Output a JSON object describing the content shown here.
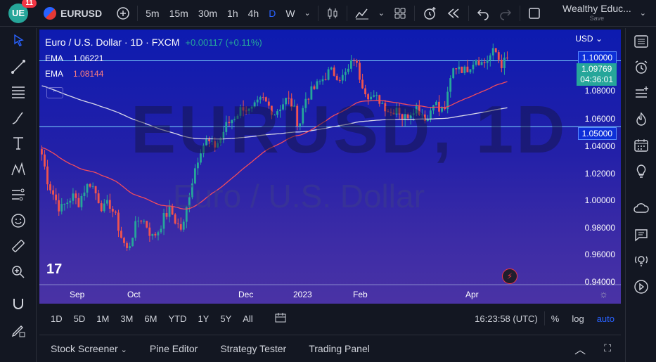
{
  "topbar": {
    "notification_count": "11",
    "symbol": "EURUSD",
    "timeframes": [
      "5m",
      "15m",
      "30m",
      "1h",
      "4h",
      "D",
      "W"
    ],
    "active_timeframe": "D",
    "layout_name": "Wealthy Educ...",
    "layout_status": "Save"
  },
  "legend": {
    "title": "Euro / U.S. Dollar · 1D · FXCM",
    "change": "+0.00117 (+0.11%)",
    "ema1_label": "EMA",
    "ema1_value": "1.06221",
    "ema2_label": "EMA",
    "ema2_value": "1.08144"
  },
  "watermark": {
    "symbol": "EURUSD, 1D",
    "name": "Euro / U.S. Dollar"
  },
  "price_axis": {
    "currency": "USD",
    "ticks": [
      "1.08000",
      "1.06000",
      "1.04000",
      "1.02000",
      "1.00000",
      "0.98000",
      "0.96000",
      "0.94000"
    ],
    "level_high": "1.10000",
    "current_price": "1.09769",
    "countdown": "04:36:01",
    "level_low": "1.05000"
  },
  "time_axis": {
    "labels": [
      "Sep",
      "Oct",
      "Dec",
      "2023",
      "Feb",
      "Apr"
    ]
  },
  "rangebar": {
    "ranges": [
      "1D",
      "5D",
      "1M",
      "3M",
      "6M",
      "YTD",
      "1Y",
      "5Y",
      "All"
    ],
    "clock": "16:23:58 (UTC)",
    "percent": "%",
    "log": "log",
    "auto": "auto"
  },
  "bottom_tabs": [
    "Stock Screener",
    "Pine Editor",
    "Strategy Tester",
    "Trading Panel"
  ],
  "colors": {
    "up": "#26a69a",
    "down": "#ef5350",
    "ema_fast": "#f44c5c",
    "ema_slow": "#d8d8e8",
    "accent": "#2962ff"
  },
  "chart_data": {
    "type": "candlestick",
    "ylim": [
      0.94,
      1.115
    ],
    "series": [
      {
        "name": "EMA",
        "value": "1.06221"
      },
      {
        "name": "EMA",
        "value": "1.08144"
      }
    ],
    "close_path": [
      1.03,
      1.01,
      1.0,
      0.99,
      0.995,
      1.0,
      0.995,
      1.005,
      1.01,
      1.0,
      0.99,
      0.995,
      0.985,
      0.97,
      0.96,
      0.975,
      0.985,
      0.98,
      0.97,
      0.975,
      0.985,
      0.99,
      0.98,
      0.975,
      1.0,
      1.02,
      1.035,
      1.04,
      1.035,
      1.04,
      1.05,
      1.055,
      1.06,
      1.065,
      1.06,
      1.065,
      1.07,
      1.065,
      1.06,
      1.065,
      1.07,
      1.065,
      1.05,
      1.07,
      1.075,
      1.08,
      1.085,
      1.09,
      1.088,
      1.085,
      1.09,
      1.1,
      1.085,
      1.075,
      1.07,
      1.07,
      1.065,
      1.06,
      1.065,
      1.055,
      1.06,
      1.065,
      1.06,
      1.055,
      1.07,
      1.06,
      1.065,
      1.09,
      1.095,
      1.09,
      1.095,
      1.1,
      1.095,
      1.1,
      1.105,
      1.095,
      1.098
    ]
  }
}
